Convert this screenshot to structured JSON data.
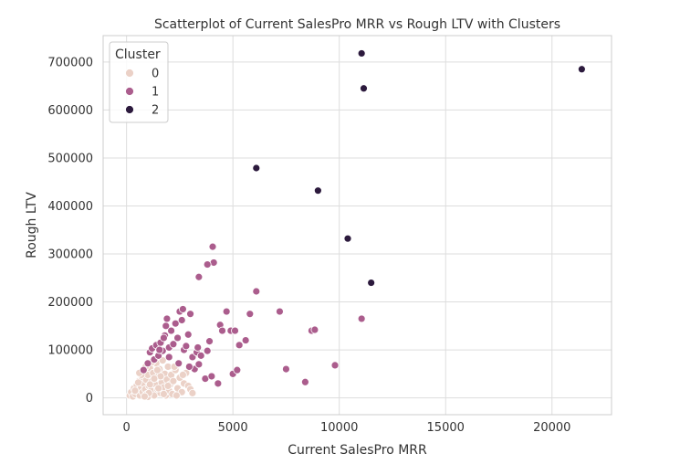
{
  "chart_data": {
    "type": "scatter",
    "title": "Scatterplot of Current SalesPro MRR vs Rough LTV with Clusters",
    "xlabel": "Current SalesPro MRR",
    "ylabel": "Rough LTV",
    "xlim": [
      -1100,
      22800
    ],
    "ylim": [
      -35000,
      755000
    ],
    "x_ticks": [
      0,
      5000,
      10000,
      15000,
      20000
    ],
    "y_ticks": [
      0,
      100000,
      200000,
      300000,
      400000,
      500000,
      600000,
      700000
    ],
    "grid": true,
    "legend": {
      "title": "Cluster",
      "placement": "top-left",
      "entries": [
        "0",
        "1",
        "2"
      ]
    },
    "colors": {
      "0": "#ebd1c7",
      "1": "#ab5d8d",
      "2": "#2c1a3d"
    },
    "series": [
      {
        "name": "0",
        "points": [
          [
            150,
            5000
          ],
          [
            220,
            12000
          ],
          [
            300,
            3000
          ],
          [
            350,
            20000
          ],
          [
            420,
            8000
          ],
          [
            480,
            26000
          ],
          [
            520,
            15000
          ],
          [
            580,
            35000
          ],
          [
            620,
            5000
          ],
          [
            680,
            22000
          ],
          [
            720,
            42000
          ],
          [
            760,
            12000
          ],
          [
            800,
            30000
          ],
          [
            850,
            55000
          ],
          [
            880,
            18000
          ],
          [
            920,
            38000
          ],
          [
            960,
            8000
          ],
          [
            1000,
            48000
          ],
          [
            1050,
            25000
          ],
          [
            1100,
            62000
          ],
          [
            1150,
            15000
          ],
          [
            1200,
            35000
          ],
          [
            1250,
            52000
          ],
          [
            1300,
            5000
          ],
          [
            1350,
            28000
          ],
          [
            1400,
            72000
          ],
          [
            1450,
            18000
          ],
          [
            1500,
            45000
          ],
          [
            1550,
            60000
          ],
          [
            1600,
            10000
          ],
          [
            1650,
            32000
          ],
          [
            1700,
            78000
          ],
          [
            1750,
            22000
          ],
          [
            1800,
            50000
          ],
          [
            1850,
            5000
          ],
          [
            1900,
            38000
          ],
          [
            1950,
            65000
          ],
          [
            2000,
            15000
          ],
          [
            2050,
            28000
          ],
          [
            2100,
            48000
          ],
          [
            2150,
            8000
          ],
          [
            2200,
            35000
          ],
          [
            2300,
            58000
          ],
          [
            2400,
            20000
          ],
          [
            2500,
            42000
          ],
          [
            2600,
            12000
          ],
          [
            2700,
            30000
          ],
          [
            2800,
            52000
          ],
          [
            2900,
            25000
          ],
          [
            3000,
            18000
          ],
          [
            3100,
            10000
          ],
          [
            1000,
            2000
          ],
          [
            1200,
            75000
          ],
          [
            900,
            65000
          ],
          [
            1600,
            45000
          ],
          [
            1100,
            28000
          ],
          [
            1300,
            40000
          ],
          [
            700,
            48000
          ],
          [
            550,
            32000
          ],
          [
            1450,
            58000
          ],
          [
            1750,
            8000
          ],
          [
            2250,
            65000
          ],
          [
            1050,
            10000
          ],
          [
            1950,
            25000
          ],
          [
            2650,
            48000
          ],
          [
            850,
            3000
          ],
          [
            400,
            15000
          ],
          [
            600,
            52000
          ],
          [
            1500,
            20000
          ],
          [
            2350,
            5000
          ]
        ]
      },
      {
        "name": "1",
        "points": [
          [
            800,
            58000
          ],
          [
            1000,
            72000
          ],
          [
            1100,
            95000
          ],
          [
            1200,
            103000
          ],
          [
            1300,
            80000
          ],
          [
            1400,
            110000
          ],
          [
            1500,
            88000
          ],
          [
            1600,
            115000
          ],
          [
            1700,
            98000
          ],
          [
            1800,
            130000
          ],
          [
            1850,
            150000
          ],
          [
            1900,
            165000
          ],
          [
            2000,
            105000
          ],
          [
            2100,
            140000
          ],
          [
            2200,
            112000
          ],
          [
            2300,
            155000
          ],
          [
            2400,
            125000
          ],
          [
            2500,
            180000
          ],
          [
            2600,
            162000
          ],
          [
            2650,
            185000
          ],
          [
            2700,
            100000
          ],
          [
            2800,
            108000
          ],
          [
            2900,
            132000
          ],
          [
            3000,
            175000
          ],
          [
            3100,
            85000
          ],
          [
            3200,
            60000
          ],
          [
            3300,
            95000
          ],
          [
            3350,
            105000
          ],
          [
            3400,
            70000
          ],
          [
            3500,
            88000
          ],
          [
            3700,
            40000
          ],
          [
            3800,
            98000
          ],
          [
            3900,
            118000
          ],
          [
            4000,
            45000
          ],
          [
            4100,
            282000
          ],
          [
            4050,
            315000
          ],
          [
            3800,
            278000
          ],
          [
            3400,
            252000
          ],
          [
            4300,
            30000
          ],
          [
            4400,
            152000
          ],
          [
            4500,
            140000
          ],
          [
            4700,
            180000
          ],
          [
            4900,
            140000
          ],
          [
            5000,
            50000
          ],
          [
            5100,
            140000
          ],
          [
            5200,
            58000
          ],
          [
            5300,
            110000
          ],
          [
            5600,
            120000
          ],
          [
            5800,
            175000
          ],
          [
            6100,
            222000
          ],
          [
            7200,
            180000
          ],
          [
            7500,
            60000
          ],
          [
            8400,
            33000
          ],
          [
            8700,
            140000
          ],
          [
            8850,
            142000
          ],
          [
            9800,
            68000
          ],
          [
            11050,
            165000
          ],
          [
            2000,
            85000
          ],
          [
            2450,
            72000
          ],
          [
            1550,
            100000
          ],
          [
            2950,
            65000
          ],
          [
            1750,
            125000
          ]
        ]
      },
      {
        "name": "2",
        "points": [
          [
            11050,
            718000
          ],
          [
            11150,
            645000
          ],
          [
            21400,
            685000
          ],
          [
            6100,
            479000
          ],
          [
            9000,
            432000
          ],
          [
            10400,
            332000
          ],
          [
            11500,
            240000
          ]
        ]
      }
    ]
  }
}
